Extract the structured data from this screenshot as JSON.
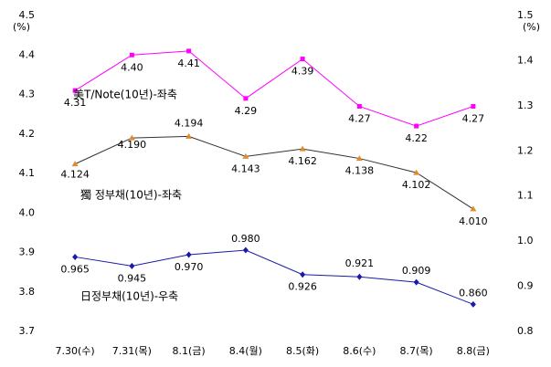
{
  "chart_data": {
    "type": "line",
    "y_unit": "(%)",
    "y2_unit": "(%)",
    "categories": [
      "7.30(수)",
      "7.31(목)",
      "8.1(금)",
      "8.4(월)",
      "8.5(화)",
      "8.6(수)",
      "8.7(목)",
      "8.8(금)"
    ],
    "ylim": [
      3.7,
      4.5
    ],
    "yticks": [
      3.7,
      3.8,
      3.9,
      {
        "value": 4,
        "label": "4.0"
      },
      4.1,
      4.2,
      4.3,
      4.4,
      4.5
    ],
    "y2lim": [
      0.8,
      1.5
    ],
    "y2ticks": [
      0.8,
      0.9,
      {
        "value": 1,
        "label": "1.0"
      },
      1.1,
      1.2,
      1.3,
      1.4,
      1.5
    ],
    "grid": false,
    "series": [
      {
        "name": "美T/Note(10년)-좌축",
        "color": "#ff00ff",
        "marker": "square",
        "values": [
          4.31,
          4.4,
          4.41,
          4.29,
          4.39,
          4.27,
          4.22,
          4.27
        ],
        "value_labels": [
          "4.31",
          "4.40",
          "4.41",
          "4.29",
          "4.39",
          "4.27",
          "4.22",
          "4.27"
        ]
      },
      {
        "name": "獨 정부채(10년)-좌축",
        "color": "#333333",
        "marker_color": "#e08a2c",
        "marker": "triangle",
        "values": [
          4.124,
          4.19,
          4.194,
          4.143,
          4.162,
          4.138,
          4.102,
          4.01
        ],
        "value_labels": [
          "4.124",
          "4.190",
          "4.194",
          "4.143",
          "4.162",
          "4.138",
          "4.102",
          "4.010"
        ]
      },
      {
        "name": "日정부채(10년)-우축",
        "color": "#1a1aa8",
        "marker": "diamond",
        "axis": "y2",
        "values": [
          0.965,
          0.945,
          0.97,
          0.98,
          0.926,
          0.921,
          0.909,
          0.86
        ],
        "value_labels": [
          "0.965",
          "0.945",
          "0.970",
          "0.980",
          "0.926",
          "0.921",
          "0.909",
          "0.860"
        ]
      }
    ]
  }
}
